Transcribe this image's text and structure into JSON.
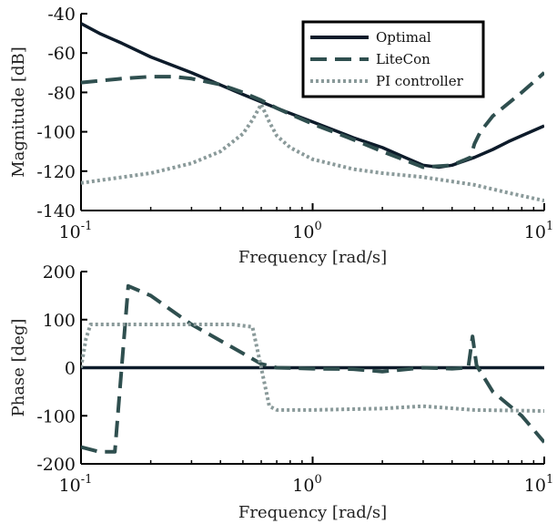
{
  "chart_data": [
    {
      "type": "line",
      "ylabel": "Magnitude [dB]",
      "xlabel": "Frequency [rad/s]",
      "xscale": "log",
      "xlim": [
        0.1,
        10
      ],
      "ylim": [
        -140,
        -40
      ],
      "xticks": [
        {
          "base": "10",
          "exp": "-1"
        },
        {
          "base": "10",
          "exp": "0"
        },
        {
          "base": "10",
          "exp": "1"
        }
      ],
      "yticks": [
        "-40",
        "-60",
        "-80",
        "-100",
        "-120",
        "-140"
      ],
      "grid": false,
      "legend_position": "top-right",
      "series": [
        {
          "name": "Optimal",
          "color": "#0d1b2a",
          "style": "solid",
          "x": [
            0.1,
            0.12,
            0.15,
            0.2,
            0.3,
            0.5,
            0.7,
            1.0,
            1.5,
            2.0,
            2.5,
            3.0,
            3.5,
            4.0,
            5.0,
            6.0,
            7.0,
            8.0,
            10.0
          ],
          "y": [
            -45,
            -50,
            -55,
            -62,
            -70,
            -81,
            -88,
            -95,
            -103,
            -108,
            -113,
            -117,
            -118,
            -117,
            -113,
            -109,
            -105,
            -102,
            -97
          ]
        },
        {
          "name": "LiteCon",
          "color": "#2f4f4f",
          "style": "dashed",
          "x": [
            0.1,
            0.15,
            0.2,
            0.25,
            0.3,
            0.4,
            0.5,
            0.6,
            0.7,
            1.0,
            1.5,
            2.0,
            3.0,
            4.0,
            4.8,
            5.0,
            5.3,
            6.0,
            8.0,
            10.0
          ],
          "y": [
            -75,
            -73,
            -72,
            -72,
            -73,
            -76,
            -80,
            -84,
            -88,
            -96,
            -104,
            -110,
            -118,
            -117,
            -113,
            -106,
            -100,
            -92,
            -80,
            -70
          ]
        },
        {
          "name": "PI controller",
          "color": "#8a9a9a",
          "style": "dotted",
          "x": [
            0.1,
            0.2,
            0.3,
            0.4,
            0.5,
            0.55,
            0.6,
            0.65,
            0.7,
            0.8,
            1.0,
            1.5,
            2.0,
            3.0,
            5.0,
            7.0,
            10.0
          ],
          "y": [
            -126,
            -121,
            -116,
            -110,
            -101,
            -94,
            -86,
            -95,
            -102,
            -108,
            -114,
            -119,
            -121,
            -123,
            -127,
            -131,
            -135
          ]
        }
      ]
    },
    {
      "type": "line",
      "ylabel": "Phase [deg]",
      "xlabel": "Frequency [rad/s]",
      "xscale": "log",
      "xlim": [
        0.1,
        10
      ],
      "ylim": [
        -200,
        200
      ],
      "xticks": [
        {
          "base": "10",
          "exp": "-1"
        },
        {
          "base": "10",
          "exp": "0"
        },
        {
          "base": "10",
          "exp": "1"
        }
      ],
      "yticks": [
        "200",
        "100",
        "0",
        "-100",
        "-200"
      ],
      "grid": false,
      "series": [
        {
          "name": "Optimal",
          "color": "#0d1b2a",
          "style": "solid",
          "x": [
            0.1,
            10.0
          ],
          "y": [
            0,
            0
          ]
        },
        {
          "name": "LiteCon",
          "color": "#2f4f4f",
          "style": "dashed",
          "x": [
            0.1,
            0.12,
            0.14,
            0.16,
            0.2,
            0.3,
            0.5,
            0.6,
            0.7,
            1.0,
            1.5,
            2.0,
            3.0,
            4.0,
            4.7,
            4.9,
            5.1,
            6.0,
            8.0,
            10.0
          ],
          "y": [
            -165,
            -175,
            -175,
            170,
            150,
            90,
            30,
            8,
            0,
            -2,
            -3,
            -8,
            0,
            -2,
            0,
            65,
            5,
            -50,
            -100,
            -155
          ]
        },
        {
          "name": "PI controller",
          "color": "#8a9a9a",
          "style": "dotted",
          "x": [
            0.1,
            0.105,
            0.11,
            0.2,
            0.3,
            0.45,
            0.55,
            0.6,
            0.65,
            0.7,
            1.0,
            2.0,
            3.0,
            5.0,
            10.0
          ],
          "y": [
            0,
            60,
            90,
            90,
            90,
            90,
            85,
            0,
            -80,
            -88,
            -88,
            -85,
            -80,
            -88,
            -90
          ]
        }
      ]
    }
  ]
}
